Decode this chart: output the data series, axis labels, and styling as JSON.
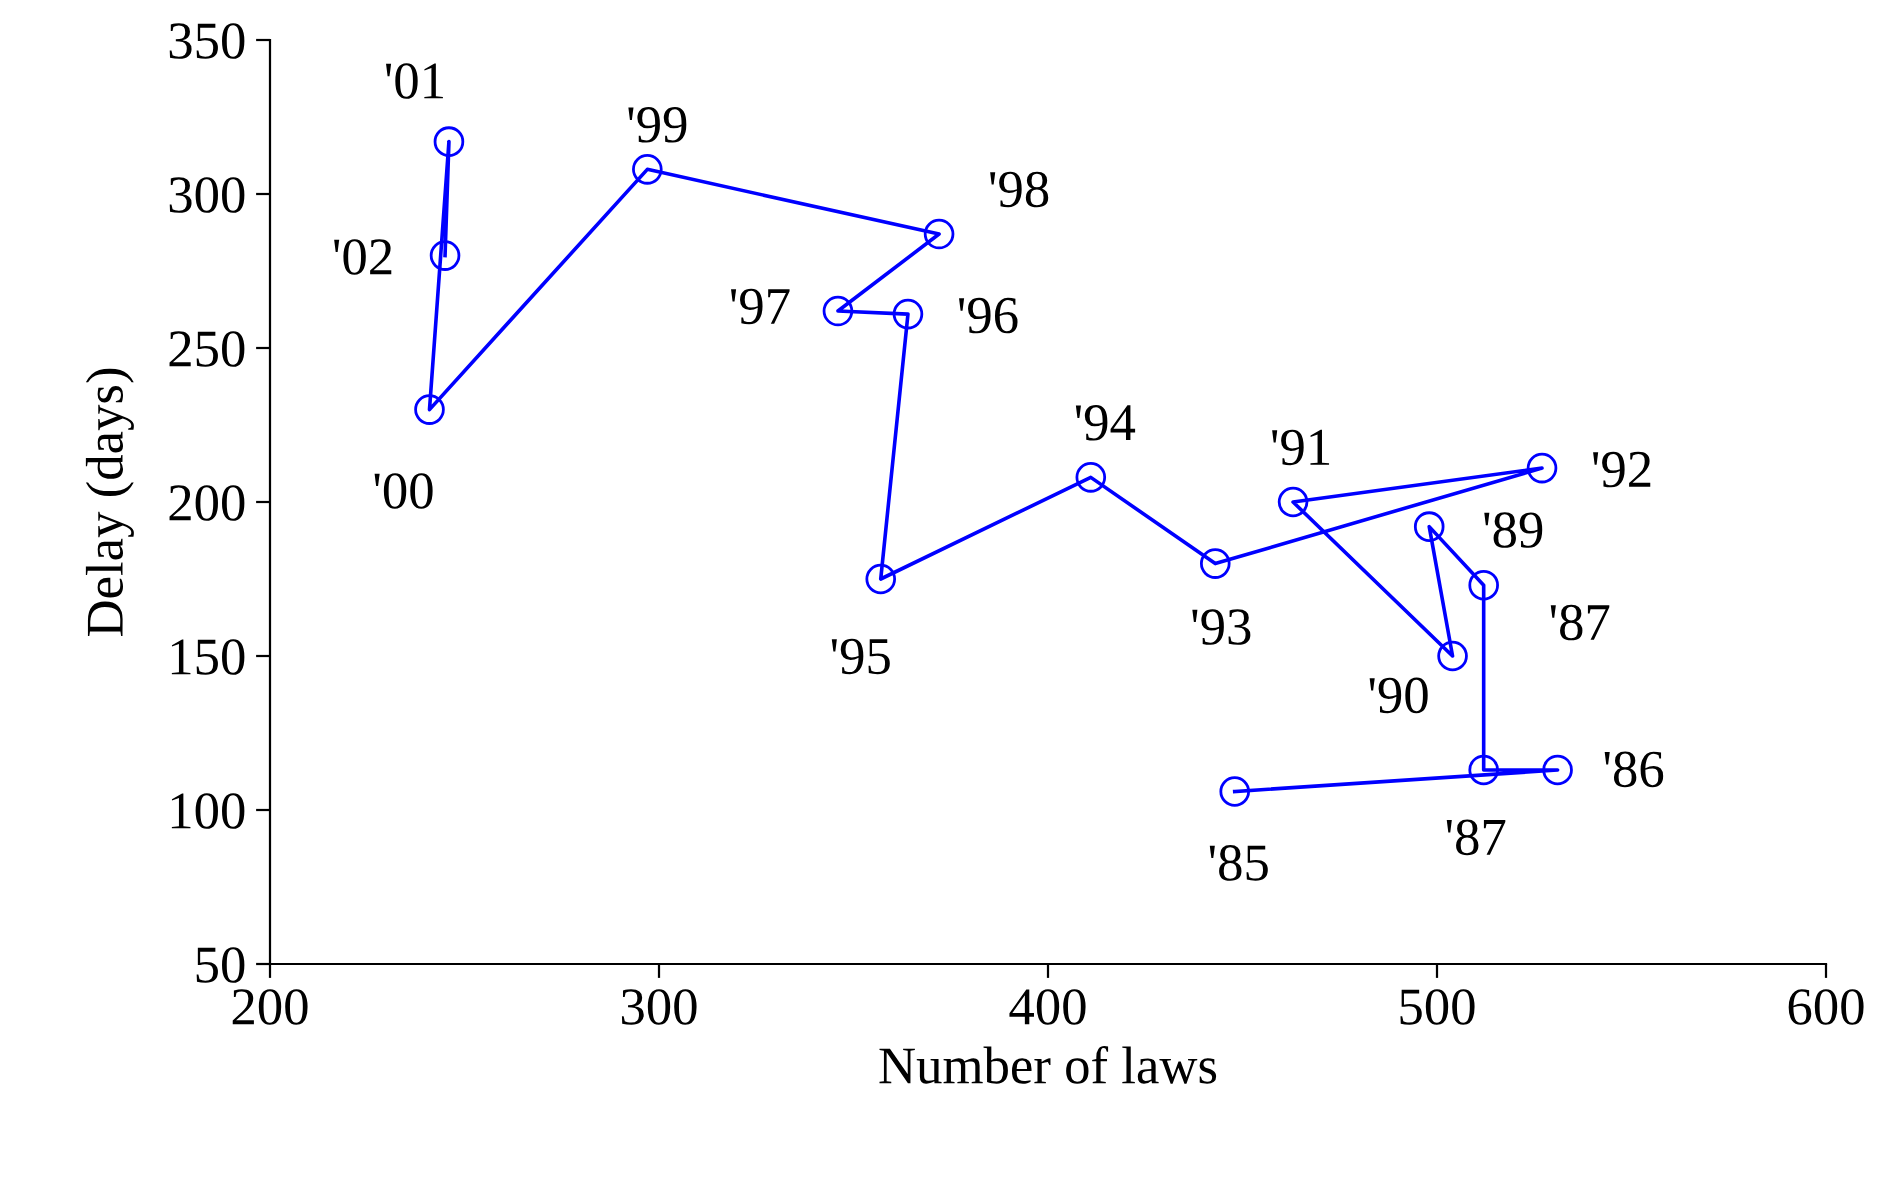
{
  "chart_data": {
    "type": "line",
    "xlabel": "Number of laws",
    "ylabel": "Delay (days)",
    "x": [
      448,
      531,
      512,
      512,
      498,
      504,
      463,
      527,
      443,
      411,
      357,
      364,
      346,
      372,
      297,
      241,
      246,
      245
    ],
    "series": [
      {
        "color": "#0000ff",
        "values": [
          106,
          113,
          113,
          173,
          192,
          150,
          200,
          211,
          180,
          208,
          175,
          261,
          262,
          287,
          308,
          230,
          317,
          280
        ]
      }
    ],
    "marker": "circle",
    "line_style": "solid",
    "grid": false,
    "xlim": [
      200,
      600
    ],
    "xticks": [
      200,
      300,
      400,
      500,
      600
    ],
    "ylim": [
      50,
      350
    ],
    "yticks": [
      50,
      100,
      150,
      200,
      250,
      300,
      350
    ],
    "annotations": [
      {
        "text": "'85",
        "x": 448,
        "y": 106
      },
      {
        "text": "'86",
        "x": 531,
        "y": 113
      },
      {
        "text": "'87",
        "x": 512,
        "y": 113
      },
      {
        "text": "'87",
        "x": 512,
        "y": 173
      },
      {
        "text": "'89",
        "x": 498,
        "y": 192
      },
      {
        "text": "'90",
        "x": 504,
        "y": 150
      },
      {
        "text": "'91",
        "x": 463,
        "y": 200
      },
      {
        "text": "'92",
        "x": 527,
        "y": 211
      },
      {
        "text": "'93",
        "x": 443,
        "y": 180
      },
      {
        "text": "'94",
        "x": 411,
        "y": 208
      },
      {
        "text": "'95",
        "x": 357,
        "y": 175
      },
      {
        "text": "'96",
        "x": 364,
        "y": 261
      },
      {
        "text": "'97",
        "x": 346,
        "y": 262
      },
      {
        "text": "'98",
        "x": 372,
        "y": 287
      },
      {
        "text": "'99",
        "x": 297,
        "y": 308
      },
      {
        "text": "'00",
        "x": 241,
        "y": 230
      },
      {
        "text": "'01",
        "x": 246,
        "y": 317
      },
      {
        "text": "'02",
        "x": 245,
        "y": 280
      }
    ]
  }
}
